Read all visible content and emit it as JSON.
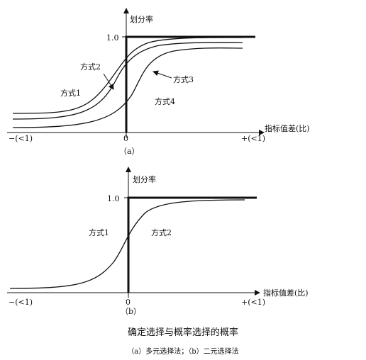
{
  "figure": {
    "title": "确定选择与概率选择的概率",
    "subtitle": "（a）多元选择法；（b）二元选择法"
  },
  "diagram_a": {
    "y_axis_label": "划分率",
    "x_axis_label": "指标值差(比)",
    "y_tick": "1.0",
    "origin": "0",
    "x_left": "−(<1)",
    "x_right": "+(<1)",
    "panel_label": "（a）",
    "curves": [
      "方式1",
      "方式2",
      "方式3",
      "方式4"
    ]
  },
  "diagram_b": {
    "y_axis_label": "划分率",
    "x_axis_label": "指标值差(比)",
    "y_tick": "1.0",
    "origin": "0",
    "x_left": "−(<1)",
    "x_right": "+(<1)",
    "panel_label": "（b）",
    "curves": [
      "方式1",
      "方式2"
    ]
  }
}
